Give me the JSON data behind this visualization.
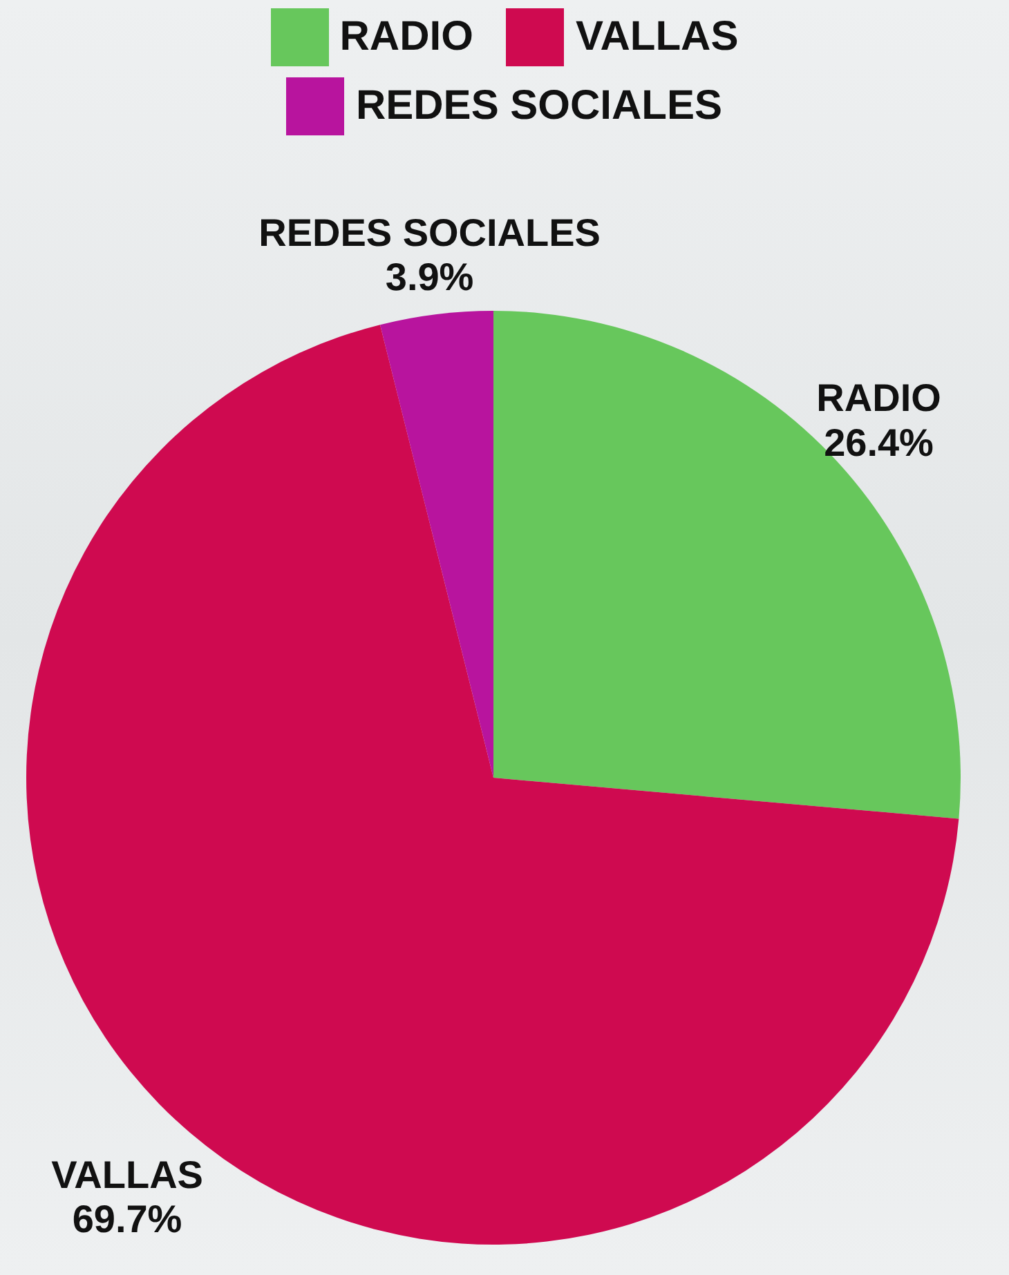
{
  "chart_data": {
    "type": "pie",
    "categories": [
      "RADIO",
      "VALLAS",
      "REDES SOCIALES"
    ],
    "values": [
      26.4,
      69.7,
      3.9
    ],
    "value_labels": [
      "26.4%",
      "69.7%",
      "3.9%"
    ],
    "colors": [
      "#67c75c",
      "#cf0a50",
      "#b8149e"
    ],
    "legend": "top"
  }
}
